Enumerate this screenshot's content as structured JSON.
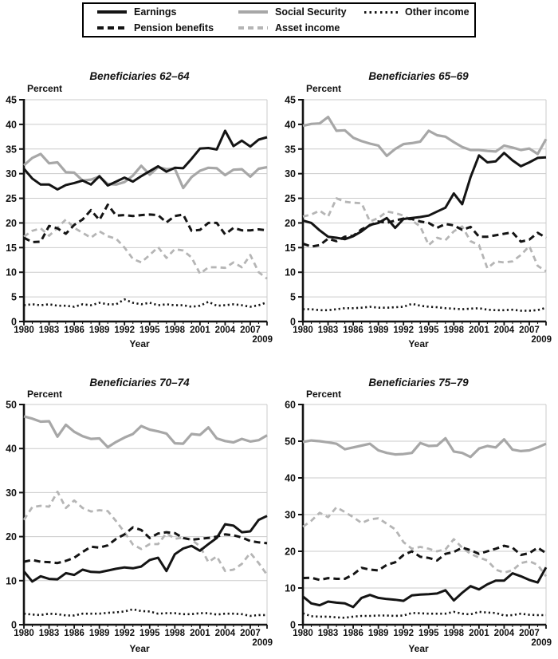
{
  "legend": {
    "items": [
      {
        "id": "earnings",
        "label": "Earnings",
        "style": "solid-black"
      },
      {
        "id": "social_security",
        "label": "Social Security",
        "style": "solid-gray"
      },
      {
        "id": "other_income",
        "label": "Other income",
        "style": "dotted-black"
      },
      {
        "id": "pension",
        "label": "Pension benefits",
        "style": "dashed-black"
      },
      {
        "id": "asset",
        "label": "Asset income",
        "style": "dashed-gray"
      }
    ]
  },
  "colors": {
    "black": "#141414",
    "gray": "#a7a7a7",
    "light_gray": "#b5b5b5",
    "grid": "#cbcbcb"
  },
  "chart_data": [
    {
      "type": "line",
      "title": "Beneficiaries 62–64",
      "ylabel": "Percent",
      "xlabel": "Year",
      "ylim": [
        0,
        45
      ],
      "ytick_step": 5,
      "grid": true,
      "x_start": 1980,
      "x_end": 2009,
      "x_ticks": [
        1980,
        1983,
        1986,
        1989,
        1992,
        1995,
        1998,
        2001,
        2004,
        2007,
        2009
      ],
      "series": [
        {
          "name": "Earnings",
          "style": "solid-black",
          "values": [
            31,
            29,
            27.8,
            27.8,
            26.8,
            27.7,
            28.1,
            28.6,
            27.8,
            29.5,
            27.6,
            28.4,
            29.2,
            28.4,
            29.5,
            30.5,
            31.5,
            30.4,
            31.2,
            31.1,
            33,
            35.1,
            35.2,
            34.9,
            38.7,
            35.6,
            36.7,
            35.5,
            36.9,
            37.4
          ]
        },
        {
          "name": "Pension benefits",
          "style": "dashed-black",
          "values": [
            17,
            16.1,
            16.2,
            19.4,
            18.9,
            17.8,
            19.6,
            20.7,
            22.6,
            20.6,
            23.7,
            21.5,
            21.6,
            21.4,
            21.6,
            21.7,
            21.6,
            20.1,
            21.4,
            21.7,
            18.4,
            18.6,
            20,
            20,
            17.7,
            19,
            18.5,
            18.5,
            18.7,
            18.5
          ]
        },
        {
          "name": "Social Security",
          "style": "solid-gray",
          "values": [
            31.7,
            33.2,
            34,
            32.1,
            32.3,
            30.3,
            30.2,
            28.6,
            28.8,
            29.4,
            27.9,
            27.8,
            28.3,
            29.6,
            31.6,
            29.8,
            31.3,
            30.9,
            31,
            27.1,
            29.3,
            30.6,
            31.2,
            31.1,
            29.7,
            30.8,
            30.9,
            29.4,
            31,
            31.3
          ]
        },
        {
          "name": "Asset income",
          "style": "dashed-gray",
          "values": [
            17.2,
            18.4,
            18.9,
            17.4,
            19,
            20.7,
            19,
            18,
            17,
            18.3,
            17.3,
            16.8,
            15,
            12.7,
            12,
            13.5,
            15.1,
            12.9,
            14.7,
            14.4,
            13,
            9.7,
            11,
            11,
            10.9,
            12,
            11,
            13.5,
            10,
            8.7
          ]
        },
        {
          "name": "Other income",
          "style": "dotted-black",
          "values": [
            3.3,
            3.5,
            3.3,
            3.5,
            3.2,
            3.2,
            3,
            3.5,
            3.3,
            3.8,
            3.5,
            3.5,
            4.5,
            3.8,
            3.5,
            3.8,
            3.3,
            3.5,
            3.3,
            3.3,
            3,
            3.2,
            4,
            3.2,
            3.3,
            3.5,
            3.3,
            3,
            3.3,
            3.9
          ]
        }
      ]
    },
    {
      "type": "line",
      "title": "Beneficiaries 65–69",
      "ylabel": "Percent",
      "xlabel": "Year",
      "ylim": [
        0,
        45
      ],
      "ytick_step": 5,
      "grid": true,
      "x_start": 1980,
      "x_end": 2009,
      "x_ticks": [
        1980,
        1983,
        1986,
        1989,
        1992,
        1995,
        1998,
        2001,
        2004,
        2007,
        2009
      ],
      "series": [
        {
          "name": "Earnings",
          "style": "solid-black",
          "values": [
            20.5,
            20,
            18.5,
            17.2,
            17,
            16.7,
            17.3,
            18.3,
            19.6,
            20,
            21,
            19,
            20.8,
            21,
            21.2,
            21.5,
            22.3,
            23.1,
            26,
            23.8,
            29.3,
            33.7,
            32.3,
            32.5,
            34.2,
            32.7,
            31.5,
            32.3,
            33.2,
            33.3
          ]
        },
        {
          "name": "Pension benefits",
          "style": "dashed-black",
          "values": [
            15.8,
            15.2,
            15.5,
            16.8,
            16.3,
            17.2,
            17.4,
            18.7,
            19.5,
            20.3,
            20,
            20.5,
            20.9,
            20.8,
            20.3,
            20,
            19,
            19.8,
            19.5,
            18.6,
            19.2,
            17.2,
            17.2,
            17.5,
            17.8,
            18.1,
            16.2,
            16.6,
            18,
            17
          ]
        },
        {
          "name": "Social Security",
          "style": "solid-gray",
          "values": [
            39.7,
            40.1,
            40.2,
            41.5,
            38.7,
            38.8,
            37.3,
            36.6,
            36.1,
            35.7,
            33.6,
            35,
            36,
            36.2,
            36.5,
            38.7,
            37.8,
            37.5,
            36.4,
            35.4,
            34.8,
            34.8,
            34.6,
            34.5,
            35.7,
            35.3,
            34.8,
            35.1,
            34,
            37
          ]
        },
        {
          "name": "Asset income",
          "style": "dashed-gray",
          "values": [
            21.3,
            21.7,
            22.5,
            21.3,
            25,
            24.3,
            24.1,
            24,
            20.3,
            21,
            22.3,
            22,
            21.5,
            20.5,
            19.3,
            15.5,
            17,
            16.5,
            18.3,
            19.3,
            16.3,
            15.5,
            10.8,
            12.2,
            12,
            12.2,
            13.5,
            15.3,
            11.3,
            10.2
          ]
        },
        {
          "name": "Other income",
          "style": "dotted-black",
          "values": [
            2.5,
            2.5,
            2.3,
            2.3,
            2.5,
            2.7,
            2.7,
            2.8,
            3,
            2.8,
            2.8,
            2.9,
            3,
            3.6,
            3.2,
            3,
            2.9,
            2.7,
            2.6,
            2.5,
            2.6,
            2.7,
            2.4,
            2.3,
            2.3,
            2.4,
            2.2,
            2.2,
            2.3,
            2.8
          ]
        }
      ]
    },
    {
      "type": "line",
      "title": "Beneficiaries 70–74",
      "ylabel": "Percent",
      "xlabel": "Year",
      "ylim": [
        0,
        50
      ],
      "ytick_step": 10,
      "grid": true,
      "x_start": 1980,
      "x_end": 2009,
      "x_ticks": [
        1980,
        1983,
        1986,
        1989,
        1992,
        1995,
        1998,
        2001,
        2004,
        2007,
        2009
      ],
      "series": [
        {
          "name": "Earnings",
          "style": "solid-black",
          "values": [
            12.1,
            9.8,
            11,
            10.4,
            10.3,
            11.7,
            11.3,
            12.5,
            12,
            11.9,
            12.3,
            12.7,
            13,
            12.8,
            13.2,
            14.7,
            15.2,
            12.2,
            16,
            17.3,
            17.9,
            16.8,
            18.3,
            19.7,
            22.8,
            22.5,
            21,
            21.2,
            23.8,
            24.7
          ]
        },
        {
          "name": "Pension benefits",
          "style": "dashed-black",
          "values": [
            14.3,
            14.7,
            14.3,
            14.2,
            14,
            14.5,
            15.2,
            16.5,
            17.7,
            17.5,
            18,
            19.5,
            20.5,
            22.1,
            21.5,
            19.7,
            20.7,
            21,
            20.8,
            19.7,
            19.3,
            19.5,
            19.7,
            20,
            20.5,
            20.3,
            19.8,
            19,
            18.7,
            18.5
          ]
        },
        {
          "name": "Social Security",
          "style": "solid-gray",
          "values": [
            47.3,
            46.8,
            46.1,
            46.2,
            42.7,
            45.4,
            43.8,
            42.8,
            42.2,
            42.3,
            40.3,
            41.5,
            42.5,
            43.3,
            45.1,
            44.3,
            43.9,
            43.4,
            41.2,
            41.1,
            43.3,
            43.1,
            44.8,
            42.3,
            41.7,
            41.4,
            42.2,
            41.6,
            41.9,
            43
          ]
        },
        {
          "name": "Asset income",
          "style": "dashed-gray",
          "values": [
            23.8,
            26.7,
            27,
            26.8,
            30.2,
            26.5,
            28.2,
            26.5,
            25.7,
            26,
            25.8,
            23.5,
            21,
            18.2,
            17.2,
            18.3,
            18.3,
            20.8,
            19.5,
            19.8,
            19.3,
            17.8,
            14.2,
            15.5,
            12.2,
            12.5,
            13.8,
            16.3,
            14,
            11.3
          ]
        },
        {
          "name": "Other income",
          "style": "dotted-black",
          "values": [
            2.5,
            2.3,
            2.2,
            2.5,
            2.4,
            2.1,
            2.1,
            2.5,
            2.5,
            2.5,
            2.7,
            2.8,
            3,
            3.5,
            3.1,
            3,
            2.5,
            2.6,
            2.6,
            2.4,
            2.4,
            2.6,
            2.6,
            2.3,
            2.5,
            2.5,
            2.4,
            2,
            2.2,
            2.2
          ]
        }
      ]
    },
    {
      "type": "line",
      "title": "Beneficiaries 75–79",
      "ylabel": "Percent",
      "xlabel": "Year",
      "ylim": [
        0,
        60
      ],
      "ytick_step": 10,
      "grid": true,
      "x_start": 1980,
      "x_end": 2009,
      "x_ticks": [
        1980,
        1983,
        1986,
        1989,
        1992,
        1995,
        1998,
        2001,
        2004,
        2007,
        2009
      ],
      "series": [
        {
          "name": "Earnings",
          "style": "solid-black",
          "values": [
            7.7,
            5.8,
            5.3,
            6.3,
            6,
            5.8,
            4.8,
            7.3,
            8.1,
            7.3,
            7,
            6.8,
            6.5,
            8,
            8.2,
            8.3,
            8.5,
            9.4,
            6.6,
            8.7,
            10.5,
            9.6,
            11,
            12,
            12,
            14,
            13.2,
            12.2,
            11.5,
            15.6
          ]
        },
        {
          "name": "Pension benefits",
          "style": "dashed-black",
          "values": [
            12.7,
            12.8,
            12.2,
            12.7,
            12.5,
            12.5,
            13.7,
            15.5,
            15,
            14.8,
            16.3,
            17,
            19,
            20,
            18.5,
            18.2,
            17.5,
            19.3,
            19.8,
            21,
            20.3,
            19.3,
            20,
            20.7,
            21.5,
            21,
            19,
            19.5,
            21,
            19.5
          ]
        },
        {
          "name": "Social Security",
          "style": "solid-gray",
          "values": [
            49.8,
            50.2,
            50,
            49.7,
            49.3,
            47.8,
            48.3,
            48.8,
            49.3,
            47.5,
            46.8,
            46.4,
            46.5,
            46.8,
            49.5,
            48.7,
            48.8,
            50.8,
            47.2,
            46.8,
            45.7,
            48,
            48.7,
            48.3,
            50.5,
            47.7,
            47.3,
            47.5,
            48.3,
            49.3
          ]
        },
        {
          "name": "Asset income",
          "style": "dashed-gray",
          "values": [
            26.7,
            28.3,
            30.5,
            29.3,
            32,
            30.7,
            29.3,
            27.7,
            28.7,
            29,
            27.5,
            26,
            22.5,
            20.7,
            21.2,
            20.7,
            20,
            20.5,
            23.3,
            21,
            19.3,
            18.3,
            17.5,
            15,
            14.2,
            14.8,
            16.8,
            17.3,
            16.3,
            13.2
          ]
        },
        {
          "name": "Other income",
          "style": "dotted-black",
          "values": [
            3.1,
            2.3,
            2.2,
            2.2,
            2,
            1.9,
            2.2,
            2.4,
            2.4,
            2.5,
            2.5,
            2.4,
            2.5,
            3.2,
            3.1,
            3,
            3,
            3,
            3.5,
            3,
            2.8,
            3.5,
            3.3,
            3.2,
            2.5,
            2.6,
            3,
            2.7,
            2.6,
            2.6
          ]
        }
      ]
    }
  ]
}
